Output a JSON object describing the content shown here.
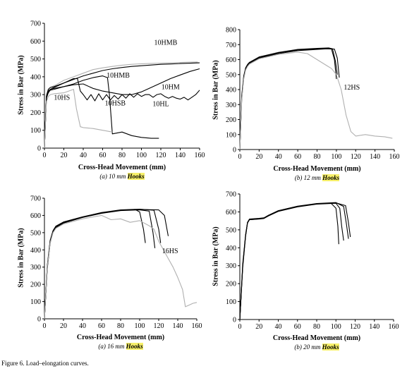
{
  "figure_caption": "Figure 6.    Load–elongation curves.",
  "highlight_color": "#f7f06a",
  "chart_data": [
    {
      "type": "line",
      "title": "",
      "caption_prefix": "(a) 10 mm ",
      "caption_highlight": "Hooks",
      "xlabel": "Cross-Head Movement (mm)",
      "ylabel": "Stress in Bar (MPa)",
      "xlim": [
        0,
        160
      ],
      "ylim": [
        0,
        700
      ],
      "xticks": [
        "0",
        "20",
        "40",
        "60",
        "80",
        "100",
        "120",
        "140",
        "160"
      ],
      "yticks": [
        "0",
        "100",
        "200",
        "300",
        "400",
        "500",
        "600",
        "700"
      ],
      "series": [
        {
          "name": "10HMB",
          "color": "#b0b0b0",
          "x": [
            0,
            2,
            4,
            6,
            8,
            12,
            20,
            30,
            40,
            50,
            60,
            70,
            80,
            90,
            100,
            110,
            120,
            130,
            140,
            150,
            158
          ],
          "y": [
            0,
            300,
            330,
            340,
            345,
            355,
            380,
            400,
            420,
            440,
            450,
            458,
            465,
            470,
            473,
            475,
            476,
            478,
            480,
            482,
            483
          ]
        },
        {
          "name": "10HMB",
          "color": "#000000",
          "x": [
            0,
            2,
            4,
            6,
            8,
            12,
            20,
            30,
            40,
            50,
            60,
            70,
            80,
            90,
            100,
            110,
            120,
            130,
            140,
            150,
            160
          ],
          "y": [
            0,
            280,
            320,
            330,
            335,
            345,
            365,
            385,
            405,
            420,
            435,
            445,
            452,
            458,
            462,
            466,
            470,
            472,
            474,
            476,
            478
          ]
        },
        {
          "name": "10HM",
          "color": "#000000",
          "x": [
            0,
            2,
            4,
            6,
            10,
            20,
            30,
            40,
            50,
            60,
            70,
            80,
            90,
            100,
            110,
            120,
            130,
            140,
            150,
            160
          ],
          "y": [
            0,
            280,
            320,
            330,
            335,
            345,
            355,
            360,
            335,
            320,
            310,
            300,
            300,
            315,
            340,
            365,
            390,
            410,
            430,
            445
          ]
        },
        {
          "name": "10HL",
          "color": "#000000",
          "x": [
            0,
            2,
            4,
            6,
            10,
            20,
            30,
            34,
            37,
            40,
            44,
            48,
            52,
            56,
            60,
            64,
            68,
            72,
            76,
            80,
            84,
            88,
            92,
            96,
            100,
            104,
            108,
            112,
            116,
            120,
            124,
            128,
            132,
            136,
            140,
            144,
            148,
            152,
            156,
            160
          ],
          "y": [
            0,
            290,
            330,
            340,
            345,
            365,
            390,
            390,
            320,
            300,
            270,
            300,
            265,
            305,
            270,
            300,
            270,
            295,
            275,
            300,
            280,
            305,
            285,
            305,
            290,
            300,
            300,
            285,
            300,
            305,
            290,
            280,
            290,
            280,
            275,
            285,
            270,
            285,
            300,
            325
          ]
        },
        {
          "name": "10HSB",
          "color": "#000000",
          "x": [
            0,
            2,
            4,
            6,
            10,
            20,
            30,
            40,
            50,
            60,
            65,
            67,
            70,
            80,
            90,
            100,
            110,
            118
          ],
          "y": [
            0,
            280,
            310,
            325,
            330,
            345,
            360,
            380,
            395,
            405,
            395,
            300,
            80,
            90,
            70,
            60,
            55,
            55
          ]
        },
        {
          "name": "10HS",
          "color": "#b0b0b0",
          "x": [
            0,
            2,
            4,
            6,
            10,
            20,
            25,
            30,
            33,
            37,
            40,
            50,
            60,
            70
          ],
          "y": [
            0,
            260,
            290,
            300,
            305,
            310,
            320,
            330,
            220,
            120,
            115,
            110,
            100,
            90
          ]
        }
      ],
      "annotations": [
        {
          "text": "10HMB",
          "x": 125,
          "y": 580
        },
        {
          "text": "10HMB",
          "x": 76,
          "y": 395
        },
        {
          "text": "10HM",
          "x": 130,
          "y": 330
        },
        {
          "text": "10HS",
          "x": 18,
          "y": 270
        },
        {
          "text": "10HSB",
          "x": 73,
          "y": 240
        },
        {
          "text": "10HL",
          "x": 120,
          "y": 236
        }
      ]
    },
    {
      "type": "line",
      "title": "",
      "caption_prefix": "(b) 12 mm ",
      "caption_highlight": "Hooks",
      "xlabel": "Cross-Head Movement (mm)",
      "ylabel": "Stress in Bar (MPa)",
      "xlim": [
        0,
        160
      ],
      "ylim": [
        0,
        800
      ],
      "xticks": [
        "0",
        "20",
        "40",
        "60",
        "80",
        "100",
        "120",
        "140",
        "160"
      ],
      "yticks": [
        "0",
        "100",
        "200",
        "300",
        "400",
        "500",
        "600",
        "700",
        "800"
      ],
      "series": [
        {
          "name": "",
          "color": "#000000",
          "x": [
            0,
            2,
            4,
            6,
            8,
            10,
            20,
            40,
            60,
            80,
            90,
            95,
            98,
            100
          ],
          "y": [
            0,
            350,
            480,
            540,
            565,
            580,
            615,
            645,
            665,
            672,
            675,
            670,
            600,
            470
          ]
        },
        {
          "name": "",
          "color": "#000000",
          "x": [
            0,
            2,
            4,
            6,
            8,
            10,
            20,
            40,
            60,
            80,
            90,
            98,
            101,
            103
          ],
          "y": [
            0,
            340,
            475,
            535,
            560,
            575,
            610,
            640,
            660,
            668,
            672,
            670,
            610,
            480
          ]
        },
        {
          "name": "",
          "color": "#000000",
          "x": [
            0,
            2,
            4,
            6,
            8,
            10,
            20,
            40,
            60,
            80,
            92,
            96,
            99,
            101
          ],
          "y": [
            0,
            360,
            490,
            545,
            568,
            582,
            618,
            648,
            668,
            675,
            678,
            672,
            590,
            500
          ]
        },
        {
          "name": "12HS",
          "color": "#b0b0b0",
          "x": [
            0,
            2,
            4,
            6,
            8,
            10,
            20,
            40,
            60,
            70,
            80,
            90,
            95,
            100,
            105,
            110,
            115,
            120,
            130,
            140,
            150,
            158
          ],
          "y": [
            0,
            330,
            470,
            530,
            555,
            570,
            605,
            635,
            650,
            640,
            600,
            560,
            540,
            500,
            400,
            230,
            120,
            90,
            100,
            90,
            85,
            75
          ]
        }
      ],
      "annotations": [
        {
          "text": "12HS",
          "x": 116,
          "y": 400
        }
      ]
    },
    {
      "type": "line",
      "title": "",
      "caption_prefix": "(a) 16 mm ",
      "caption_highlight": "Hooks",
      "xlabel": "Cross-Head Movement (mm)",
      "ylabel": "Stress in Bar (MPa)",
      "xlim": [
        0,
        160
      ],
      "ylim": [
        0,
        700
      ],
      "xticks": [
        "0",
        "20",
        "40",
        "60",
        "80",
        "100",
        "120",
        "140",
        "160"
      ],
      "yticks": [
        "0",
        "100",
        "200",
        "300",
        "400",
        "500",
        "600",
        "700"
      ],
      "series": [
        {
          "name": "",
          "color": "#000000",
          "x": [
            0,
            3,
            6,
            9,
            12,
            20,
            40,
            60,
            80,
            95,
            100,
            104,
            106
          ],
          "y": [
            0,
            300,
            450,
            510,
            535,
            560,
            590,
            615,
            630,
            635,
            620,
            520,
            440
          ]
        },
        {
          "name": "",
          "color": "#000000",
          "x": [
            0,
            3,
            6,
            9,
            12,
            20,
            40,
            60,
            80,
            100,
            110,
            114,
            116
          ],
          "y": [
            0,
            290,
            440,
            505,
            530,
            555,
            588,
            612,
            628,
            632,
            625,
            500,
            410
          ]
        },
        {
          "name": "",
          "color": "#000000",
          "x": [
            0,
            3,
            6,
            9,
            12,
            20,
            40,
            60,
            80,
            100,
            115,
            120,
            122
          ],
          "y": [
            0,
            310,
            455,
            512,
            538,
            562,
            592,
            617,
            632,
            636,
            630,
            520,
            440
          ]
        },
        {
          "name": "",
          "color": "#000000",
          "x": [
            0,
            3,
            6,
            9,
            12,
            20,
            40,
            60,
            80,
            100,
            120,
            126,
            130
          ],
          "y": [
            0,
            300,
            445,
            508,
            533,
            558,
            590,
            615,
            630,
            634,
            632,
            600,
            480
          ]
        },
        {
          "name": "16HS",
          "color": "#b0b0b0",
          "x": [
            0,
            3,
            6,
            9,
            12,
            20,
            40,
            60,
            70,
            80,
            90,
            100,
            110,
            115,
            120,
            125,
            130,
            135,
            140,
            145,
            148,
            152,
            156,
            160
          ],
          "y": [
            0,
            300,
            440,
            500,
            525,
            550,
            580,
            600,
            575,
            580,
            560,
            570,
            540,
            520,
            450,
            400,
            350,
            300,
            240,
            170,
            70,
            80,
            90,
            95
          ]
        }
      ],
      "annotations": [
        {
          "text": "16HS",
          "x": 132,
          "y": 380
        }
      ]
    },
    {
      "type": "line",
      "title": "",
      "caption_prefix": "(b) 20 mm ",
      "caption_highlight": "Hooks",
      "xlabel": "Cross-Head Movement (mm)",
      "ylabel": "Stress in Bar (MPa)",
      "xlim": [
        0,
        160
      ],
      "ylim": [
        0,
        700
      ],
      "xticks": [
        "0",
        "20",
        "40",
        "60",
        "80",
        "100",
        "120",
        "140",
        "160"
      ],
      "yticks": [
        "0",
        "100",
        "200",
        "300",
        "400",
        "500",
        "600",
        "700"
      ],
      "series": [
        {
          "name": "",
          "color": "#000000",
          "x": [
            0,
            3,
            6,
            8,
            10,
            15,
            20,
            25,
            30,
            40,
            60,
            80,
            95,
            100,
            102,
            103
          ],
          "y": [
            0,
            300,
            470,
            540,
            558,
            560,
            562,
            565,
            580,
            605,
            630,
            645,
            648,
            620,
            520,
            420
          ]
        },
        {
          "name": "",
          "color": "#000000",
          "x": [
            0,
            3,
            6,
            8,
            10,
            15,
            20,
            25,
            30,
            40,
            60,
            80,
            100,
            104,
            106,
            108
          ],
          "y": [
            0,
            290,
            465,
            538,
            556,
            558,
            560,
            563,
            578,
            603,
            628,
            643,
            648,
            620,
            520,
            440
          ]
        },
        {
          "name": "",
          "color": "#000000",
          "x": [
            0,
            3,
            6,
            8,
            10,
            15,
            20,
            25,
            30,
            40,
            60,
            80,
            100,
            108,
            111,
            113
          ],
          "y": [
            0,
            310,
            475,
            542,
            560,
            562,
            564,
            567,
            582,
            607,
            632,
            647,
            652,
            630,
            530,
            450
          ]
        },
        {
          "name": "",
          "color": "#000000",
          "x": [
            0,
            3,
            6,
            8,
            10,
            15,
            20,
            25,
            30,
            40,
            60,
            80,
            100,
            110,
            113,
            115
          ],
          "y": [
            0,
            300,
            468,
            540,
            557,
            559,
            561,
            565,
            580,
            605,
            630,
            645,
            650,
            635,
            540,
            460
          ]
        }
      ],
      "annotations": []
    }
  ]
}
